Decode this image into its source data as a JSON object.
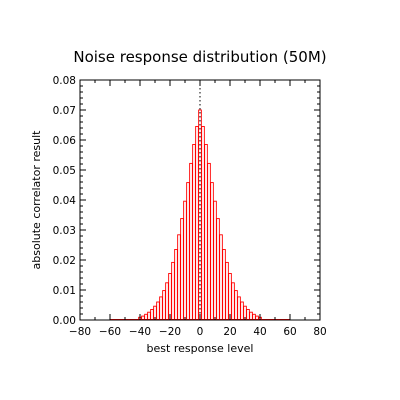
{
  "chart_data": {
    "type": "bar",
    "title": "Noise response distribution (50M)",
    "xlabel": "best response level",
    "ylabel": "absolute correlator result",
    "xlim": [
      -80,
      80
    ],
    "ylim": [
      0,
      0.08
    ],
    "x_ticks": [
      -80,
      -60,
      -40,
      -20,
      0,
      20,
      40,
      60,
      80
    ],
    "x_tick_labels": [
      "−80",
      "−60",
      "−40",
      "−20",
      "0",
      "20",
      "40",
      "60",
      "80"
    ],
    "y_ticks": [
      0.0,
      0.01,
      0.02,
      0.03,
      0.04,
      0.05,
      0.06,
      0.07,
      0.08
    ],
    "y_tick_labels": [
      "0.00",
      "0.01",
      "0.02",
      "0.03",
      "0.04",
      "0.05",
      "0.06",
      "0.07",
      "0.08"
    ],
    "reference_line": {
      "x": 0,
      "style": "dotted"
    },
    "grid": false,
    "bar_color": "#ff0000",
    "x": [
      -40,
      -38,
      -36,
      -34,
      -32,
      -30,
      -28,
      -26,
      -24,
      -22,
      -20,
      -18,
      -16,
      -14,
      -12,
      -10,
      -8,
      -6,
      -4,
      -2,
      0,
      2,
      4,
      6,
      8,
      10,
      12,
      14,
      16,
      18,
      20,
      22,
      24,
      26,
      28,
      30,
      32,
      34,
      36,
      38,
      40
    ],
    "values": [
      0.0009,
      0.0013,
      0.0019,
      0.0026,
      0.0035,
      0.0046,
      0.006,
      0.0077,
      0.0098,
      0.0124,
      0.0155,
      0.0192,
      0.0235,
      0.0284,
      0.0338,
      0.0396,
      0.0458,
      0.0522,
      0.0585,
      0.0645,
      0.07,
      0.0645,
      0.0585,
      0.0522,
      0.0458,
      0.0396,
      0.0338,
      0.0284,
      0.0235,
      0.0192,
      0.0155,
      0.0124,
      0.0098,
      0.0077,
      0.006,
      0.0046,
      0.0035,
      0.0026,
      0.0019,
      0.0013,
      0.0009
    ]
  }
}
